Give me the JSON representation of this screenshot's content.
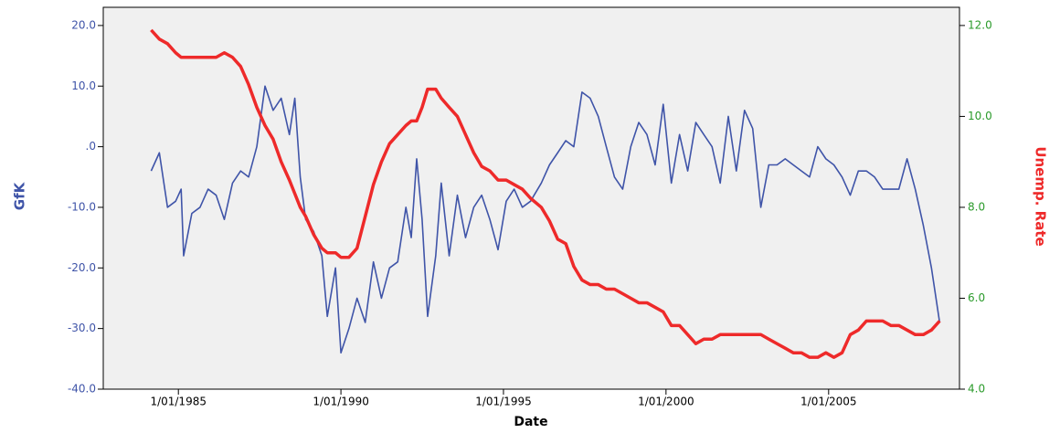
{
  "chart_data": {
    "type": "line",
    "x_label": "Date",
    "y_label": "GfK",
    "y2_label": "Unemp. Rate",
    "x": [
      "1984-03-01",
      "1984-06-01",
      "1984-09-01",
      "1984-12-01",
      "1985-02-01",
      "1985-03-01",
      "1985-06-01",
      "1985-09-01",
      "1985-12-01",
      "1986-03-01",
      "1986-06-01",
      "1986-09-01",
      "1986-12-01",
      "1987-03-01",
      "1987-06-01",
      "1987-09-01",
      "1987-12-01",
      "1988-03-01",
      "1988-06-01",
      "1988-08-01",
      "1988-10-01",
      "1988-12-01",
      "1989-03-01",
      "1989-06-01",
      "1989-08-01",
      "1989-11-01",
      "1990-01-01",
      "1990-04-01",
      "1990-07-01",
      "1990-10-01",
      "1991-01-01",
      "1991-04-01",
      "1991-07-01",
      "1991-10-01",
      "1992-01-01",
      "1992-03-01",
      "1992-05-01",
      "1992-07-01",
      "1992-09-01",
      "1992-12-01",
      "1993-02-01",
      "1993-05-01",
      "1993-08-01",
      "1993-11-01",
      "1994-02-01",
      "1994-05-01",
      "1994-08-01",
      "1994-11-01",
      "1995-02-01",
      "1995-05-01",
      "1995-08-01",
      "1995-11-01",
      "1996-03-01",
      "1996-06-01",
      "1996-09-01",
      "1996-12-01",
      "1997-03-01",
      "1997-06-01",
      "1997-09-01",
      "1997-12-01",
      "1998-03-01",
      "1998-06-01",
      "1998-09-01",
      "1998-12-01",
      "1999-03-01",
      "1999-06-01",
      "1999-09-01",
      "1999-12-01",
      "2000-03-01",
      "2000-06-01",
      "2000-09-01",
      "2000-12-01",
      "2001-03-01",
      "2001-06-01",
      "2001-09-01",
      "2001-12-01",
      "2002-03-01",
      "2002-06-01",
      "2002-09-01",
      "2002-12-01",
      "2003-03-01",
      "2003-06-01",
      "2003-09-01",
      "2003-12-01",
      "2004-03-01",
      "2004-06-01",
      "2004-09-01",
      "2004-12-01",
      "2005-03-01",
      "2005-06-01",
      "2005-09-01",
      "2005-12-01",
      "2006-03-01",
      "2006-06-01",
      "2006-09-01",
      "2006-12-01",
      "2007-03-01",
      "2007-06-01",
      "2007-09-01",
      "2007-12-01",
      "2008-03-01",
      "2008-06-01"
    ],
    "series": [
      {
        "color": "#3f54a8",
        "axis": "y",
        "values": [
          -4,
          -1,
          -10,
          -9,
          -7,
          -18,
          -11,
          -10,
          -7,
          -8,
          -12,
          -6,
          -4,
          -5,
          0,
          10,
          6,
          8,
          2,
          8,
          -5,
          -12,
          -14,
          -18,
          -28,
          -20,
          -34,
          -30,
          -25,
          -29,
          -19,
          -25,
          -20,
          -19,
          -10,
          -15,
          -2,
          -12,
          -28,
          -18,
          -6,
          -18,
          -8,
          -15,
          -10,
          -8,
          -12,
          -17,
          -9,
          -7,
          -10,
          -9,
          -6,
          -3,
          -1,
          1,
          0,
          9,
          8,
          5,
          0,
          -5,
          -7,
          0,
          4,
          2,
          -3,
          7,
          -6,
          2,
          -4,
          4,
          2,
          0,
          -6,
          5,
          -4,
          6,
          3,
          -10,
          -3,
          -3,
          -2,
          -3,
          -4,
          -5,
          0,
          -2,
          -3,
          -5,
          -8,
          -4,
          -4,
          -5,
          -7,
          -7,
          -7,
          -2,
          -7,
          -13,
          -20,
          -29
        ]
      },
      {
        "color": "#ee2a2a",
        "axis": "y2",
        "values": [
          11.9,
          11.7,
          11.6,
          11.4,
          11.3,
          11.3,
          11.3,
          11.3,
          11.3,
          11.3,
          11.4,
          11.3,
          11.1,
          10.7,
          10.2,
          9.8,
          9.5,
          9.0,
          8.6,
          8.3,
          8.0,
          7.8,
          7.4,
          7.1,
          7.0,
          7.0,
          6.9,
          6.9,
          7.1,
          7.8,
          8.5,
          9.0,
          9.4,
          9.6,
          9.8,
          9.9,
          9.9,
          10.2,
          10.6,
          10.6,
          10.4,
          10.2,
          10.0,
          9.6,
          9.2,
          8.9,
          8.8,
          8.6,
          8.6,
          8.5,
          8.4,
          8.2,
          8.0,
          7.7,
          7.3,
          7.2,
          6.7,
          6.4,
          6.3,
          6.3,
          6.2,
          6.2,
          6.1,
          6.0,
          5.9,
          5.9,
          5.8,
          5.7,
          5.4,
          5.4,
          5.2,
          5.0,
          5.1,
          5.1,
          5.2,
          5.2,
          5.2,
          5.2,
          5.2,
          5.2,
          5.1,
          5.0,
          4.9,
          4.8,
          4.8,
          4.7,
          4.7,
          4.8,
          4.7,
          4.8,
          5.2,
          5.3,
          5.5,
          5.5,
          5.5,
          5.4,
          5.4,
          5.3,
          5.2,
          5.2,
          5.3,
          5.5
        ]
      }
    ],
    "xlim": [
      "1982-09-10",
      "2009-01-10"
    ],
    "xticks": [
      {
        "value": "1985-01-01",
        "label": "1/01/1985"
      },
      {
        "value": "1990-01-01",
        "label": "1/01/1990"
      },
      {
        "value": "1995-01-01",
        "label": "1/01/1995"
      },
      {
        "value": "2000-01-01",
        "label": "1/01/2000"
      },
      {
        "value": "2005-01-01",
        "label": "1/01/2005"
      }
    ],
    "ylim": [
      -40,
      23
    ],
    "yticks": [
      {
        "value": 20,
        "label": "20.0"
      },
      {
        "value": 10,
        "label": "10.0"
      },
      {
        "value": 0,
        "label": ".0"
      },
      {
        "value": -10,
        "label": "-10.0"
      },
      {
        "value": -20,
        "label": "-20.0"
      },
      {
        "value": -30,
        "label": "-30.0"
      },
      {
        "value": -40,
        "label": "-40.0"
      }
    ],
    "y2lim": [
      4,
      12.4
    ],
    "y2ticks": [
      {
        "value": 12,
        "label": "12.0"
      },
      {
        "value": 10,
        "label": "10.0"
      },
      {
        "value": 8,
        "label": "8.0"
      },
      {
        "value": 6,
        "label": "6.0"
      },
      {
        "value": 4,
        "label": "4.0"
      }
    ],
    "y_tick_color": "#3f54a8",
    "y2_tick_color": "#2a9a2a"
  }
}
